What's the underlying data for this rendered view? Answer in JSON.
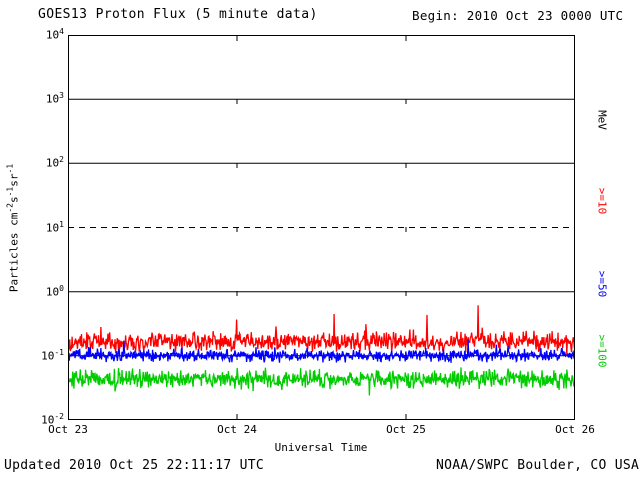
{
  "header": {
    "title": "GOES13 Proton Flux (5 minute data)",
    "begin_label": "Begin: 2010 Oct 23 0000 UTC"
  },
  "axes": {
    "xlabel": "Universal Time",
    "x_ticks": [
      "Oct 23",
      "Oct 24",
      "Oct 25",
      "Oct 26"
    ],
    "y_exponents": [
      4,
      3,
      2,
      1,
      0,
      -1,
      -2
    ],
    "ylabel_parts": [
      {
        "t": "Particles  cm"
      },
      {
        "sup": "-2"
      },
      {
        "t": "s"
      },
      {
        "sup": "-1"
      },
      {
        "t": "sr"
      },
      {
        "sup": "-1"
      }
    ]
  },
  "legend": {
    "entries": [
      {
        "label": "MeV",
        "color": "#000000"
      },
      {
        "label": ">=10",
        "color": "#ff0000"
      },
      {
        "label": ">=50",
        "color": "#0000ff"
      },
      {
        "label": ">=100",
        "color": "#00cc00"
      }
    ]
  },
  "footer": {
    "updated": "Updated 2010 Oct 25 22:11:17 UTC",
    "source": "NOAA/SWPC Boulder, CO USA"
  },
  "chart_data": {
    "type": "line",
    "title": "GOES13 Proton Flux (5 minute data)",
    "xlabel": "Universal Time",
    "ylabel": "Particles cm^-2 s^-1 sr^-1",
    "x_start": "2010 Oct 23 0000 UTC",
    "x_end": "2010 Oct 26 0000 UTC",
    "x_tick_labels": [
      "Oct 23",
      "Oct 24",
      "Oct 25",
      "Oct 26"
    ],
    "y_scale": "log",
    "y_range": [
      0.01,
      10000
    ],
    "solid_gridlines_log": [
      3,
      2,
      0,
      -1
    ],
    "dashed_gridlines_log": [
      1
    ],
    "grid_day_lines": [
      "Oct 24",
      "Oct 25"
    ],
    "cadence_minutes": 5,
    "n_points": 864,
    "series": [
      {
        "name": "Protons >=10 MeV",
        "color": "#ff0000",
        "baseline_flux": 0.17,
        "typical_range": [
          0.09,
          0.3
        ],
        "peak_flux": 0.5,
        "base_log": -0.78,
        "half_range_log": 0.22,
        "spike_prob": 0.012,
        "spike_amp_log": 0.3,
        "seed": 101
      },
      {
        "name": "Protons >=50 MeV",
        "color": "#0000ff",
        "baseline_flux": 0.1,
        "typical_range": [
          0.07,
          0.16
        ],
        "peak_flux": 0.18,
        "base_log": -0.99,
        "half_range_log": 0.14,
        "spike_prob": 0.004,
        "spike_amp_log": 0.15,
        "seed": 202
      },
      {
        "name": "Protons >=100 MeV",
        "color": "#00cc00",
        "baseline_flux": 0.044,
        "typical_range": [
          0.025,
          0.085
        ],
        "peak_flux": 0.09,
        "base_log": -1.36,
        "half_range_log": 0.2,
        "spike_prob": 0.01,
        "spike_amp_log": -0.25,
        "seed": 303
      }
    ]
  }
}
